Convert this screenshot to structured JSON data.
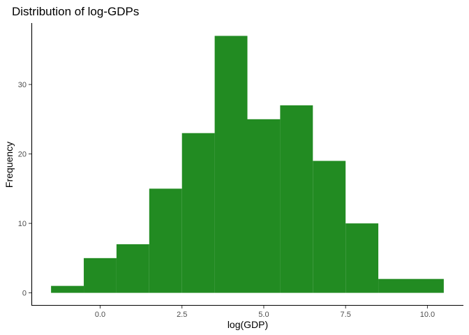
{
  "chart_data": {
    "type": "bar",
    "title": "Distribution of log-GDPs",
    "xlabel": "log(GDP)",
    "ylabel": "Frequency",
    "bar_color": "#228B22",
    "bins": [
      {
        "x0": -1.5,
        "x1": -0.5,
        "count": 1
      },
      {
        "x0": -0.5,
        "x1": 0.5,
        "count": 5
      },
      {
        "x0": 0.5,
        "x1": 1.5,
        "count": 7
      },
      {
        "x0": 1.5,
        "x1": 2.5,
        "count": 15
      },
      {
        "x0": 2.5,
        "x1": 3.5,
        "count": 23
      },
      {
        "x0": 3.5,
        "x1": 4.5,
        "count": 37
      },
      {
        "x0": 4.5,
        "x1": 5.5,
        "count": 25
      },
      {
        "x0": 5.5,
        "x1": 6.5,
        "count": 27
      },
      {
        "x0": 6.5,
        "x1": 7.5,
        "count": 19
      },
      {
        "x0": 7.5,
        "x1": 8.5,
        "count": 10
      },
      {
        "x0": 8.5,
        "x1": 10.5,
        "count": 2
      }
    ],
    "xlim": [
      -2.1,
      11.1
    ],
    "ylim": [
      -1.85,
      38.85
    ],
    "x_ticks": [
      {
        "value": 0,
        "label": "0.0"
      },
      {
        "value": 2.5,
        "label": "2.5"
      },
      {
        "value": 5,
        "label": "5.0"
      },
      {
        "value": 7.5,
        "label": "7.5"
      },
      {
        "value": 10,
        "label": "10.0"
      }
    ],
    "y_ticks": [
      {
        "value": 0,
        "label": "0"
      },
      {
        "value": 10,
        "label": "10"
      },
      {
        "value": 20,
        "label": "20"
      },
      {
        "value": 30,
        "label": "30"
      }
    ],
    "grid": false,
    "legend": "none"
  }
}
